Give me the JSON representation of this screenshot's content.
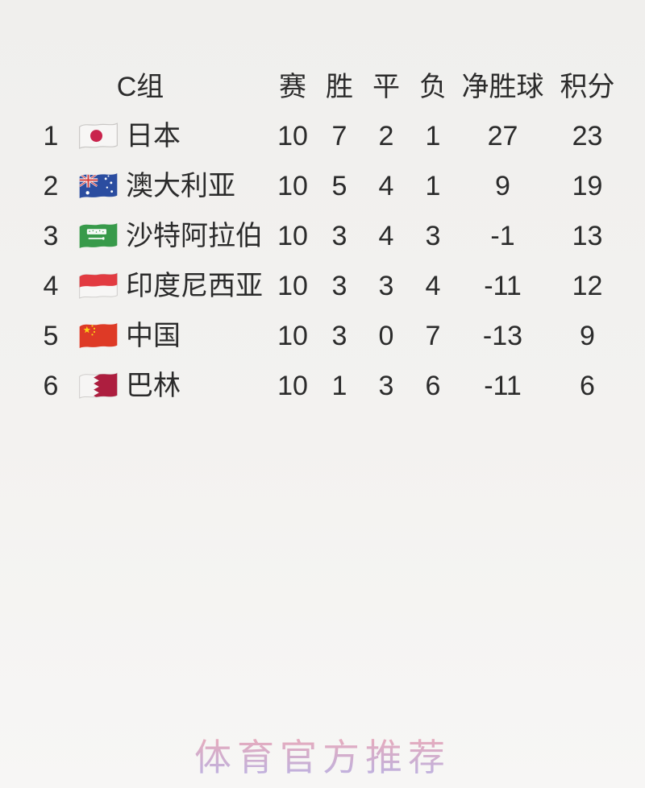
{
  "page": {
    "background_color": "#f3f2f0",
    "text_color": "#2b2b2b"
  },
  "table": {
    "group_title": "C组",
    "columns": [
      "赛",
      "胜",
      "平",
      "负",
      "净胜球",
      "积分"
    ],
    "rows": [
      {
        "rank": "1",
        "flag": "japan",
        "team": "日本",
        "played": "10",
        "won": "7",
        "drawn": "2",
        "lost": "1",
        "gd": "27",
        "points": "23"
      },
      {
        "rank": "2",
        "flag": "australia",
        "team": "澳大利亚",
        "played": "10",
        "won": "5",
        "drawn": "4",
        "lost": "1",
        "gd": "9",
        "points": "19"
      },
      {
        "rank": "3",
        "flag": "saudi-arabia",
        "team": "沙特阿拉伯",
        "played": "10",
        "won": "3",
        "drawn": "4",
        "lost": "3",
        "gd": "-1",
        "points": "13"
      },
      {
        "rank": "4",
        "flag": "indonesia",
        "team": "印度尼西亚",
        "played": "10",
        "won": "3",
        "drawn": "3",
        "lost": "4",
        "gd": "-11",
        "points": "12"
      },
      {
        "rank": "5",
        "flag": "china",
        "team": "中国",
        "played": "10",
        "won": "3",
        "drawn": "0",
        "lost": "7",
        "gd": "-13",
        "points": "9"
      },
      {
        "rank": "6",
        "flag": "bahrain",
        "team": "巴林",
        "played": "10",
        "won": "1",
        "drawn": "3",
        "lost": "6",
        "gd": "-11",
        "points": "6"
      }
    ]
  },
  "watermark": {
    "text": "体育官方推荐",
    "gradient_top": "#ec9fae",
    "gradient_bottom": "#b2a6e0"
  }
}
